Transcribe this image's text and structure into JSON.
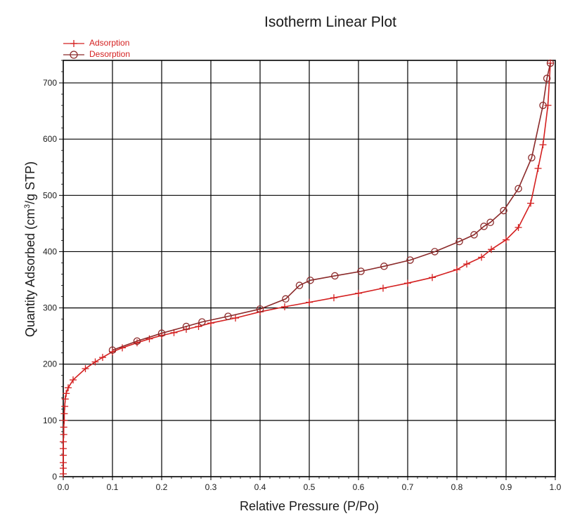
{
  "chart_data": {
    "type": "line",
    "title": "Isotherm Linear Plot",
    "xlabel": "Relative Pressure (P/Po)",
    "ylabel_main": "Quantity Adsorbed (cm",
    "ylabel_sup": "3",
    "ylabel_tail": "/g STP)",
    "xlim": [
      0,
      1.0
    ],
    "ylim": [
      0,
      740
    ],
    "x_ticks": [
      0.0,
      0.1,
      0.2,
      0.3,
      0.4,
      0.5,
      0.6,
      0.7,
      0.8,
      0.9,
      1.0
    ],
    "x_tick_labels": [
      "0.0",
      "0.1",
      "0.2",
      "0.3",
      "0.4",
      "0.5",
      "0.6",
      "0.7",
      "0.8",
      "0.9",
      "1.0"
    ],
    "y_ticks": [
      0,
      100,
      200,
      300,
      400,
      500,
      600,
      700
    ],
    "y_tick_labels": [
      "0",
      "100",
      "200",
      "300",
      "400",
      "500",
      "600",
      "700"
    ],
    "grid": true,
    "legend_position": "top-left",
    "series": [
      {
        "name": "Adsorption",
        "marker": "plus",
        "color": "#d42020",
        "points": [
          [
            0.0,
            5
          ],
          [
            0.0,
            15
          ],
          [
            0.0,
            25
          ],
          [
            0.0,
            38
          ],
          [
            0.0,
            50
          ],
          [
            0.0,
            62
          ],
          [
            0.001,
            75
          ],
          [
            0.001,
            88
          ],
          [
            0.002,
            100
          ],
          [
            0.002,
            112
          ],
          [
            0.003,
            125
          ],
          [
            0.004,
            138
          ],
          [
            0.006,
            148
          ],
          [
            0.01,
            158
          ],
          [
            0.02,
            172
          ],
          [
            0.045,
            192
          ],
          [
            0.065,
            204
          ],
          [
            0.08,
            212
          ],
          [
            0.1,
            222
          ],
          [
            0.12,
            229
          ],
          [
            0.15,
            238
          ],
          [
            0.175,
            245
          ],
          [
            0.2,
            251
          ],
          [
            0.225,
            256
          ],
          [
            0.25,
            262
          ],
          [
            0.275,
            267
          ],
          [
            0.3,
            273
          ],
          [
            0.35,
            282
          ],
          [
            0.4,
            293
          ],
          [
            0.45,
            302
          ],
          [
            0.5,
            310
          ],
          [
            0.55,
            318
          ],
          [
            0.6,
            326
          ],
          [
            0.65,
            335
          ],
          [
            0.7,
            344
          ],
          [
            0.75,
            354
          ],
          [
            0.8,
            368
          ],
          [
            0.82,
            378
          ],
          [
            0.85,
            390
          ],
          [
            0.87,
            404
          ],
          [
            0.9,
            421
          ],
          [
            0.925,
            443
          ],
          [
            0.95,
            486
          ],
          [
            0.965,
            548
          ],
          [
            0.975,
            590
          ],
          [
            0.985,
            660
          ],
          [
            0.99,
            735
          ]
        ]
      },
      {
        "name": "Desorption",
        "marker": "circle",
        "color": "#8b2a2a",
        "points": [
          [
            0.99,
            735
          ],
          [
            0.983,
            708
          ],
          [
            0.975,
            660
          ],
          [
            0.952,
            567
          ],
          [
            0.925,
            512
          ],
          [
            0.895,
            473
          ],
          [
            0.868,
            452
          ],
          [
            0.855,
            445
          ],
          [
            0.835,
            430
          ],
          [
            0.805,
            418
          ],
          [
            0.755,
            400
          ],
          [
            0.705,
            385
          ],
          [
            0.652,
            374
          ],
          [
            0.605,
            365
          ],
          [
            0.552,
            357
          ],
          [
            0.502,
            349
          ],
          [
            0.48,
            340
          ],
          [
            0.452,
            316
          ],
          [
            0.4,
            298
          ],
          [
            0.335,
            285
          ],
          [
            0.282,
            275
          ],
          [
            0.25,
            267
          ],
          [
            0.2,
            255
          ],
          [
            0.15,
            241
          ],
          [
            0.1,
            225
          ]
        ]
      }
    ]
  }
}
